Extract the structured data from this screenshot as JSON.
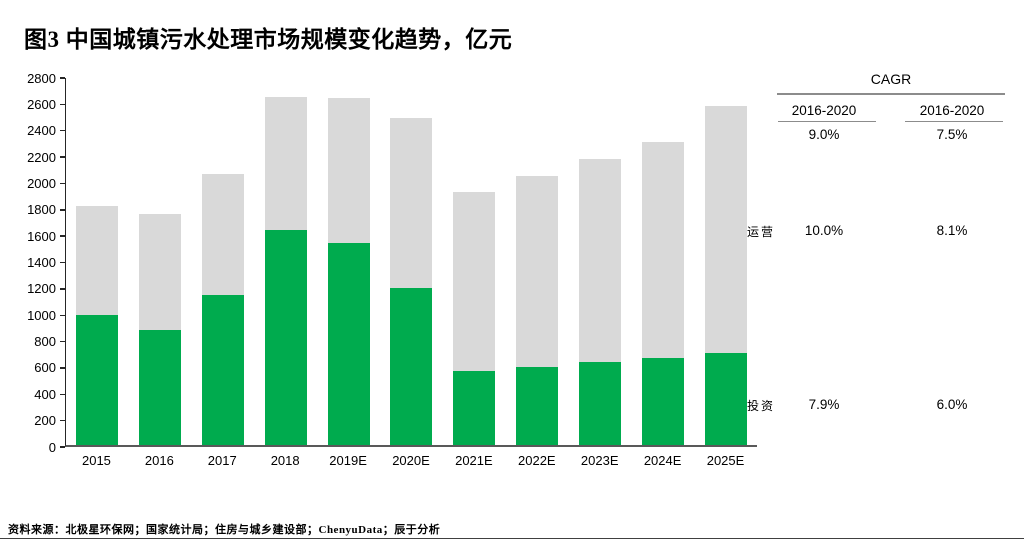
{
  "chart_data": {
    "type": "bar",
    "stacked": true,
    "title": "图3 中国城镇污水处理市场规模变化趋势，亿元",
    "categories": [
      "2015",
      "2016",
      "2017",
      "2018",
      "2019E",
      "2020E",
      "2021E",
      "2022E",
      "2023E",
      "2024E",
      "2025E"
    ],
    "series": [
      {
        "name": "投资",
        "color": "#00AB4E",
        "values": [
          990,
          870,
          1140,
          1630,
          1530,
          1190,
          560,
          590,
          630,
          660,
          700
        ]
      },
      {
        "name": "运营",
        "color": "#D9D9D9",
        "values": [
          820,
          880,
          920,
          1010,
          1100,
          1290,
          1360,
          1450,
          1540,
          1640,
          1870
        ]
      }
    ],
    "totals": [
      1810,
      1750,
      2060,
      2640,
      2630,
      2480,
      1920,
      2040,
      2170,
      2300,
      2570
    ],
    "ylim": [
      0,
      2800
    ],
    "ytick_step": 200,
    "grid": false,
    "legend_position": "right-row-labels"
  },
  "cagr_table": {
    "title": "CAGR",
    "columns": [
      "2016-2020",
      "2016-2020"
    ],
    "overall": [
      "9.0%",
      "7.5%"
    ],
    "rows": [
      {
        "label": "运营",
        "values": [
          "10.0%",
          "8.1%"
        ]
      },
      {
        "label": "投资",
        "values": [
          "7.9%",
          "6.0%"
        ]
      }
    ]
  },
  "footer": {
    "source": "资料来源：北极星环保网；国家统计局；住房与城乡建设部；ChenyuData；辰于分析"
  }
}
